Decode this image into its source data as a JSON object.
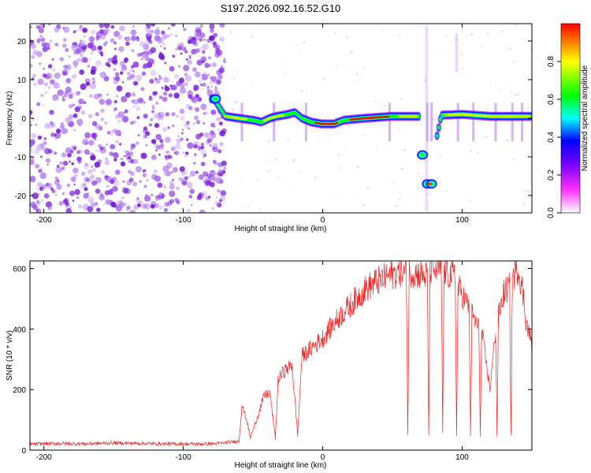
{
  "figure_title": "S197.2026.092.16.52.G10",
  "chart_data": [
    {
      "id": "spectrogram",
      "type": "heatmap",
      "title": "",
      "xlabel": "Height of straight line (km)",
      "ylabel": "Frequency (Hz)",
      "xlim": [
        -210,
        150
      ],
      "ylim": [
        -24.5,
        24.5
      ],
      "xticks": [
        -200,
        -100,
        0,
        100
      ],
      "yticks": [
        -20,
        -10,
        0,
        10,
        20
      ],
      "colorbar": {
        "label": "Normalized spectral amplitude",
        "range": [
          0,
          1
        ],
        "ticks": [
          0.0,
          0.2,
          0.4,
          0.6,
          0.8
        ],
        "tick_labels": [
          "0.0",
          "0.2",
          "0.4",
          "0.6",
          "0.8"
        ],
        "colors": [
          "#ffffff",
          "#ff33ff",
          "#8000ff",
          "#0000ff",
          "#00ffff",
          "#00ff00",
          "#ffff00",
          "#ff0000"
        ]
      },
      "noise_region_x": [
        -210,
        -70
      ],
      "ridge": [
        [
          -78,
          5
        ],
        [
          -70,
          0.5
        ],
        [
          -60,
          0
        ],
        [
          -50,
          -0.5
        ],
        [
          -44,
          -1
        ],
        [
          -38,
          0
        ],
        [
          -33,
          0.5
        ],
        [
          -25,
          1
        ],
        [
          -20,
          1.5
        ],
        [
          -15,
          0
        ],
        [
          -8,
          -1
        ],
        [
          0,
          -1.5
        ],
        [
          8,
          -1.5
        ],
        [
          15,
          -0.5
        ],
        [
          30,
          0
        ],
        [
          50,
          0.5
        ],
        [
          70,
          0.5
        ],
        [
          72,
          -9.5
        ],
        [
          75,
          -17
        ],
        [
          85,
          0.8
        ],
        [
          100,
          1
        ],
        [
          120,
          0.5
        ],
        [
          140,
          0.5
        ],
        [
          150,
          0.5
        ]
      ]
    },
    {
      "id": "snr",
      "type": "line",
      "title": "",
      "xlabel": "Height of straight line (km)",
      "ylabel": "SNR (10 * v/v)",
      "xlim": [
        -210,
        150
      ],
      "ylim": [
        0,
        625
      ],
      "xticks": [
        -200,
        -100,
        0,
        100
      ],
      "yticks": [
        0,
        200,
        400,
        600
      ],
      "line_color": "#ee2222",
      "series": [
        {
          "name": "SNR",
          "points": [
            [
              -210,
              20
            ],
            [
              -190,
              22
            ],
            [
              -170,
              21
            ],
            [
              -150,
              24
            ],
            [
              -130,
              22
            ],
            [
              -110,
              21
            ],
            [
              -90,
              20
            ],
            [
              -75,
              22
            ],
            [
              -60,
              30
            ],
            [
              -58,
              150
            ],
            [
              -54,
              90
            ],
            [
              -52,
              40
            ],
            [
              -46,
              120
            ],
            [
              -42,
              180
            ],
            [
              -38,
              190
            ],
            [
              -34,
              40
            ],
            [
              -32,
              230
            ],
            [
              -28,
              260
            ],
            [
              -22,
              280
            ],
            [
              -18,
              50
            ],
            [
              -15,
              310
            ],
            [
              -10,
              330
            ],
            [
              -5,
              350
            ],
            [
              0,
              370
            ],
            [
              5,
              400
            ],
            [
              10,
              430
            ],
            [
              20,
              480
            ],
            [
              30,
              530
            ],
            [
              40,
              560
            ],
            [
              50,
              580
            ],
            [
              55,
              590
            ],
            [
              60,
              580
            ],
            [
              61,
              50
            ],
            [
              62,
              590
            ],
            [
              70,
              580
            ],
            [
              75,
              575
            ],
            [
              76,
              50
            ],
            [
              77,
              590
            ],
            [
              85,
              600
            ],
            [
              86,
              60
            ],
            [
              87,
              590
            ],
            [
              95,
              570
            ],
            [
              96,
              50
            ],
            [
              97,
              540
            ],
            [
              105,
              470
            ],
            [
              106,
              50
            ],
            [
              107,
              450
            ],
            [
              112,
              400
            ],
            [
              113,
              50
            ],
            [
              114,
              390
            ],
            [
              120,
              200
            ],
            [
              124,
              400
            ],
            [
              125,
              50
            ],
            [
              126,
              440
            ],
            [
              130,
              520
            ],
            [
              134,
              540
            ],
            [
              135,
              50
            ],
            [
              136,
              570
            ],
            [
              140,
              600
            ],
            [
              143,
              540
            ],
            [
              146,
              420
            ],
            [
              150,
              350
            ]
          ]
        }
      ]
    }
  ]
}
